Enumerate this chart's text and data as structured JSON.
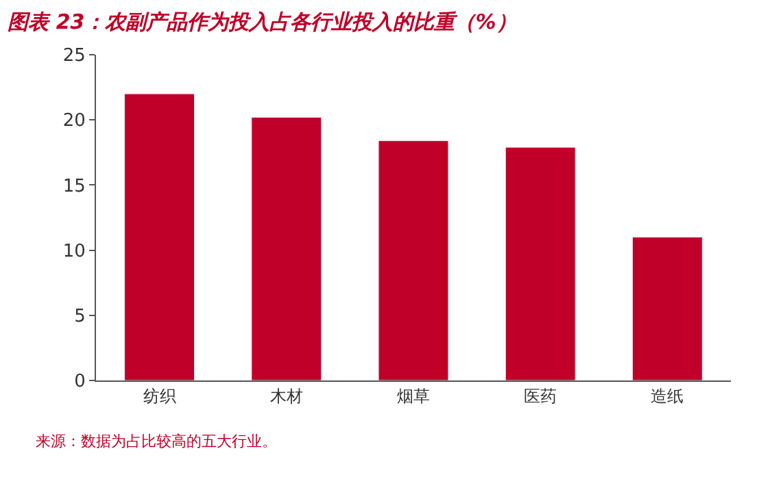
{
  "chart_data": {
    "type": "bar",
    "title": "图表 23：农副产品作为投入占各行业投入的比重（%）",
    "categories": [
      "纺织",
      "木材",
      "烟草",
      "医药",
      "造纸"
    ],
    "values": [
      22.0,
      20.2,
      18.4,
      17.9,
      11.0
    ],
    "color": "#c00028",
    "ylim": [
      0,
      25
    ],
    "yticks": [
      0,
      5,
      10,
      15,
      20,
      25
    ],
    "annotations": [
      "来源：数据为占比较高的五大行业。"
    ]
  }
}
